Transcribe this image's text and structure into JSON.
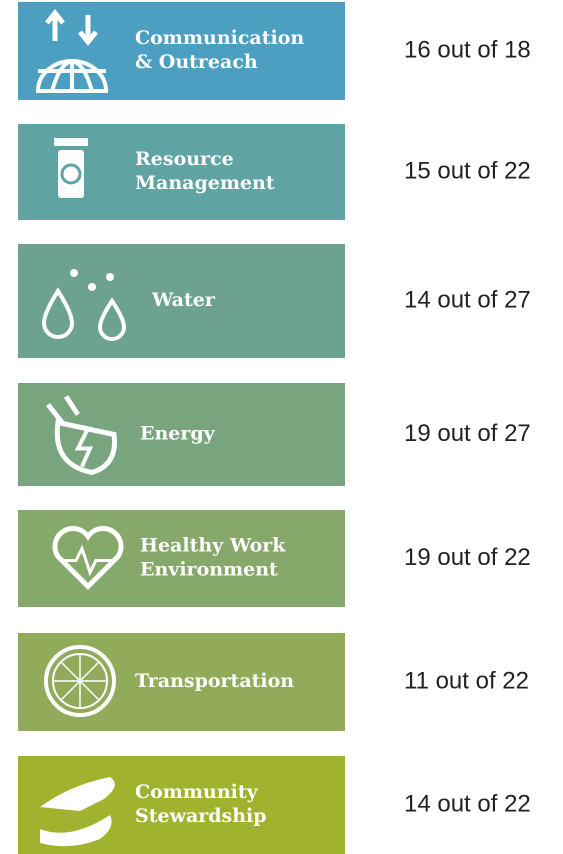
{
  "items": [
    {
      "label": [
        "Communication",
        "& Outreach"
      ],
      "score": "16 out of 18"
    },
    {
      "label": [
        "Resource",
        "Management"
      ],
      "score": "15 out of 22"
    },
    {
      "label": [
        "Water"
      ],
      "score": "14 out of 27"
    },
    {
      "label": [
        "Energy"
      ],
      "score": "19 out of 27"
    },
    {
      "label": [
        "Healthy Work",
        "Environment"
      ],
      "score": "19 out of 22"
    },
    {
      "label": [
        "Transportation"
      ],
      "score": "11 out of 22"
    },
    {
      "label": [
        "Community",
        "Stewardship"
      ],
      "score": "14 out of 22"
    }
  ]
}
